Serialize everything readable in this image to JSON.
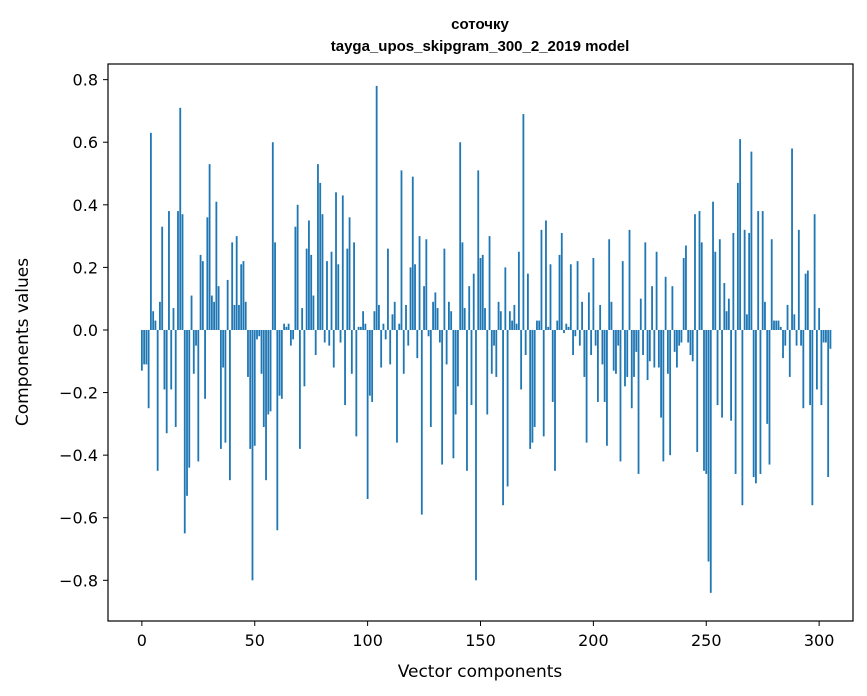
{
  "chart_data": {
    "type": "bar",
    "title_lines": [
      "соточку",
      "tayga_upos_skipgram_300_2_2019 model"
    ],
    "xlabel": "Vector components",
    "ylabel": "Components values",
    "xlim": [
      -15,
      315
    ],
    "ylim": [
      -0.93,
      0.85
    ],
    "x_ticks": [
      0,
      50,
      100,
      150,
      200,
      250,
      300
    ],
    "x_tick_labels": [
      "0",
      "50",
      "100",
      "150",
      "200",
      "250",
      "300"
    ],
    "y_ticks": [
      -0.8,
      -0.6,
      -0.4,
      -0.2,
      0.0,
      0.2,
      0.4,
      0.6,
      0.8
    ],
    "y_tick_labels": [
      "−0.8",
      "−0.6",
      "−0.4",
      "−0.2",
      "0.0",
      "0.2",
      "0.4",
      "0.6",
      "0.8"
    ],
    "bar_color": "#1f77b4",
    "grid": false,
    "values": [
      -0.13,
      -0.11,
      -0.11,
      -0.25,
      0.63,
      0.06,
      0.03,
      -0.45,
      0.09,
      0.33,
      -0.19,
      -0.33,
      0.38,
      -0.19,
      0.07,
      -0.31,
      0.38,
      0.71,
      0.37,
      -0.65,
      -0.53,
      -0.44,
      0.11,
      -0.14,
      -0.05,
      -0.42,
      0.24,
      0.22,
      -0.22,
      0.36,
      0.53,
      0.11,
      0.09,
      0.41,
      0.14,
      -0.38,
      -0.12,
      -0.36,
      0.16,
      -0.48,
      0.28,
      0.08,
      0.3,
      0.08,
      0.21,
      0.22,
      0.09,
      -0.15,
      -0.38,
      -0.8,
      -0.37,
      -0.03,
      -0.02,
      -0.14,
      -0.31,
      -0.48,
      -0.27,
      -0.26,
      0.6,
      0.28,
      -0.64,
      -0.21,
      -0.22,
      0.02,
      0.01,
      0.02,
      -0.05,
      -0.03,
      0.33,
      0.4,
      -0.38,
      0.07,
      -0.18,
      0.26,
      0.35,
      0.24,
      0.11,
      -0.08,
      0.53,
      0.47,
      0.37,
      -0.04,
      0.22,
      -0.05,
      0.25,
      -0.12,
      0.44,
      0.21,
      -0.04,
      0.43,
      -0.24,
      0.26,
      0.36,
      -0.14,
      0.28,
      -0.34,
      0.01,
      0.01,
      0.06,
      0.02,
      -0.54,
      -0.21,
      -0.23,
      0.06,
      0.78,
      0.08,
      -0.12,
      0.02,
      -0.03,
      0.26,
      -0.11,
      0.05,
      0.09,
      -0.36,
      0.02,
      0.51,
      -0.14,
      0.08,
      -0.05,
      0.2,
      0.49,
      0.21,
      -0.09,
      0.3,
      -0.59,
      0.14,
      0.29,
      -0.02,
      -0.31,
      0.09,
      0.12,
      0.07,
      -0.04,
      -0.43,
      0.26,
      -0.11,
      0.09,
      0.06,
      -0.41,
      -0.27,
      -0.18,
      0.6,
      0.28,
      0.07,
      -0.45,
      0.14,
      -0.24,
      0.18,
      -0.8,
      0.51,
      0.23,
      0.24,
      0.07,
      -0.27,
      0.3,
      -0.14,
      -0.05,
      -0.15,
      0.09,
      0.06,
      -0.56,
      0.2,
      -0.5,
      0.06,
      0.03,
      0.08,
      0.02,
      0.25,
      -0.19,
      0.69,
      -0.08,
      0.18,
      -0.38,
      -0.36,
      -0.31,
      0.03,
      0.03,
      0.32,
      -0.34,
      0.35,
      0.01,
      0.21,
      -0.23,
      -0.45,
      0.03,
      0.24,
      0.31,
      -0.01,
      0.02,
      0.01,
      0.21,
      -0.08,
      -0.02,
      0.22,
      -0.05,
      0.09,
      -0.15,
      -0.36,
      0.12,
      -0.08,
      0.23,
      -0.05,
      -0.23,
      0.08,
      -0.11,
      -0.23,
      -0.37,
      0.29,
      0.09,
      -0.13,
      -0.14,
      -0.05,
      -0.42,
      0.22,
      -0.18,
      -0.15,
      0.32,
      -0.25,
      -0.15,
      -0.07,
      -0.46,
      0.1,
      -0.08,
      0.28,
      -0.16,
      -0.1,
      0.14,
      -0.12,
      0.25,
      -0.12,
      -0.28,
      -0.42,
      0.17,
      -0.14,
      -0.4,
      0.14,
      -0.07,
      -0.12,
      -0.05,
      -0.04,
      0.23,
      0.27,
      -0.04,
      -0.08,
      -0.1,
      0.37,
      -0.39,
      0.38,
      0.28,
      -0.45,
      -0.46,
      -0.74,
      -0.84,
      0.41,
      0.25,
      -0.24,
      0.29,
      -0.28,
      0.15,
      0.06,
      0.1,
      -0.29,
      0.31,
      -0.46,
      0.47,
      0.61,
      -0.56,
      0.32,
      0.05,
      0.31,
      0.57,
      -0.47,
      -0.49,
      0.38,
      -0.46,
      0.38,
      0.09,
      -0.3,
      -0.43,
      0.29,
      0.03,
      0.03,
      0.03,
      0.01,
      -0.09,
      -0.05,
      0.08,
      -0.15,
      0.58,
      0.05,
      -0.05,
      0.32,
      -0.05,
      -0.25,
      0.18,
      0.19,
      -0.24,
      -0.56,
      0.37,
      -0.19,
      0.07,
      -0.24,
      -0.04,
      -0.04,
      -0.47,
      -0.06
    ]
  }
}
